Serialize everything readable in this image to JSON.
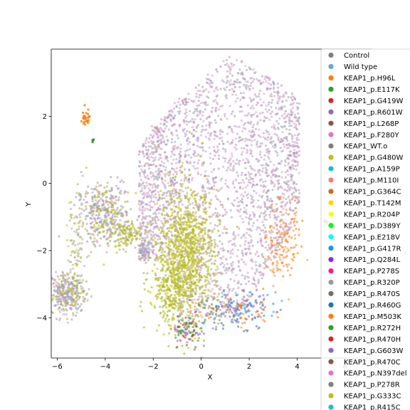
{
  "chart_data": {
    "type": "scatter",
    "title": "",
    "xlabel": "X",
    "ylabel": "Y",
    "xlim": [
      -6.25,
      7.1
    ],
    "ylim": [
      -5.2,
      4.0
    ],
    "xticks": [
      -6,
      -4,
      -2,
      0,
      2,
      4,
      6
    ],
    "yticks": [
      -4,
      -2,
      0,
      2
    ],
    "grid": false,
    "legend_position": "right",
    "series": [
      {
        "name": "Control",
        "color": "#7f7f7f"
      },
      {
        "name": "Wild type",
        "color": "#6aa7d2"
      },
      {
        "name": "KEAP1_p.H96L",
        "color": "#ff7f0e"
      },
      {
        "name": "KEAP1_p.E117K",
        "color": "#2ca02c"
      },
      {
        "name": "KEAP1_p.G419W",
        "color": "#d62728"
      },
      {
        "name": "KEAP1_p.R601W",
        "color": "#9467bd"
      },
      {
        "name": "KEAP1_p.L268P",
        "color": "#8c564b"
      },
      {
        "name": "KEAP1_p.F280Y",
        "color": "#e377c2"
      },
      {
        "name": "KEAP1_WT.o",
        "color": "#7f7f7f"
      },
      {
        "name": "KEAP1_p.G480W",
        "color": "#bcbd22"
      },
      {
        "name": "KEAP1_p.A159P",
        "color": "#17becf"
      },
      {
        "name": "KEAP1_p.M110I",
        "color": "#f08080"
      },
      {
        "name": "KEAP1_p.G364C",
        "color": "#d2691e"
      },
      {
        "name": "KEAP1_p.T142M",
        "color": "#ffd700"
      },
      {
        "name": "KEAP1_p.R204P",
        "color": "#ffff00"
      },
      {
        "name": "KEAP1_p.D389Y",
        "color": "#00ff00"
      },
      {
        "name": "KEAP1_p.E218V",
        "color": "#00ffff"
      },
      {
        "name": "KEAP1_p.G417R",
        "color": "#1e90ff"
      },
      {
        "name": "KEAP1_p.Q284L",
        "color": "#8a2be2"
      },
      {
        "name": "KEAP1_p.P278S",
        "color": "#ff1493"
      },
      {
        "name": "KEAP1_p.R320P",
        "color": "#999999"
      },
      {
        "name": "KEAP1_p.R470S",
        "color": "#707070"
      },
      {
        "name": "KEAP1_p.R460G",
        "color": "#1f77b4"
      },
      {
        "name": "KEAP1_p.M503K",
        "color": "#ff7f0e"
      },
      {
        "name": "KEAP1_p.R272H",
        "color": "#2ca02c"
      },
      {
        "name": "KEAP1_p.R470H",
        "color": "#d62728"
      },
      {
        "name": "KEAP1_p.G603W",
        "color": "#9467bd"
      },
      {
        "name": "KEAP1_p.R470C",
        "color": "#8c564b"
      },
      {
        "name": "KEAP1_p.N397del",
        "color": "#e377c2"
      },
      {
        "name": "KEAP1_p.P278R",
        "color": "#7f7f7f"
      },
      {
        "name": "KEAP1_p.G333C",
        "color": "#bcbd22"
      },
      {
        "name": "KEAP1_p.R415C",
        "color": "#17becf"
      }
    ]
  }
}
